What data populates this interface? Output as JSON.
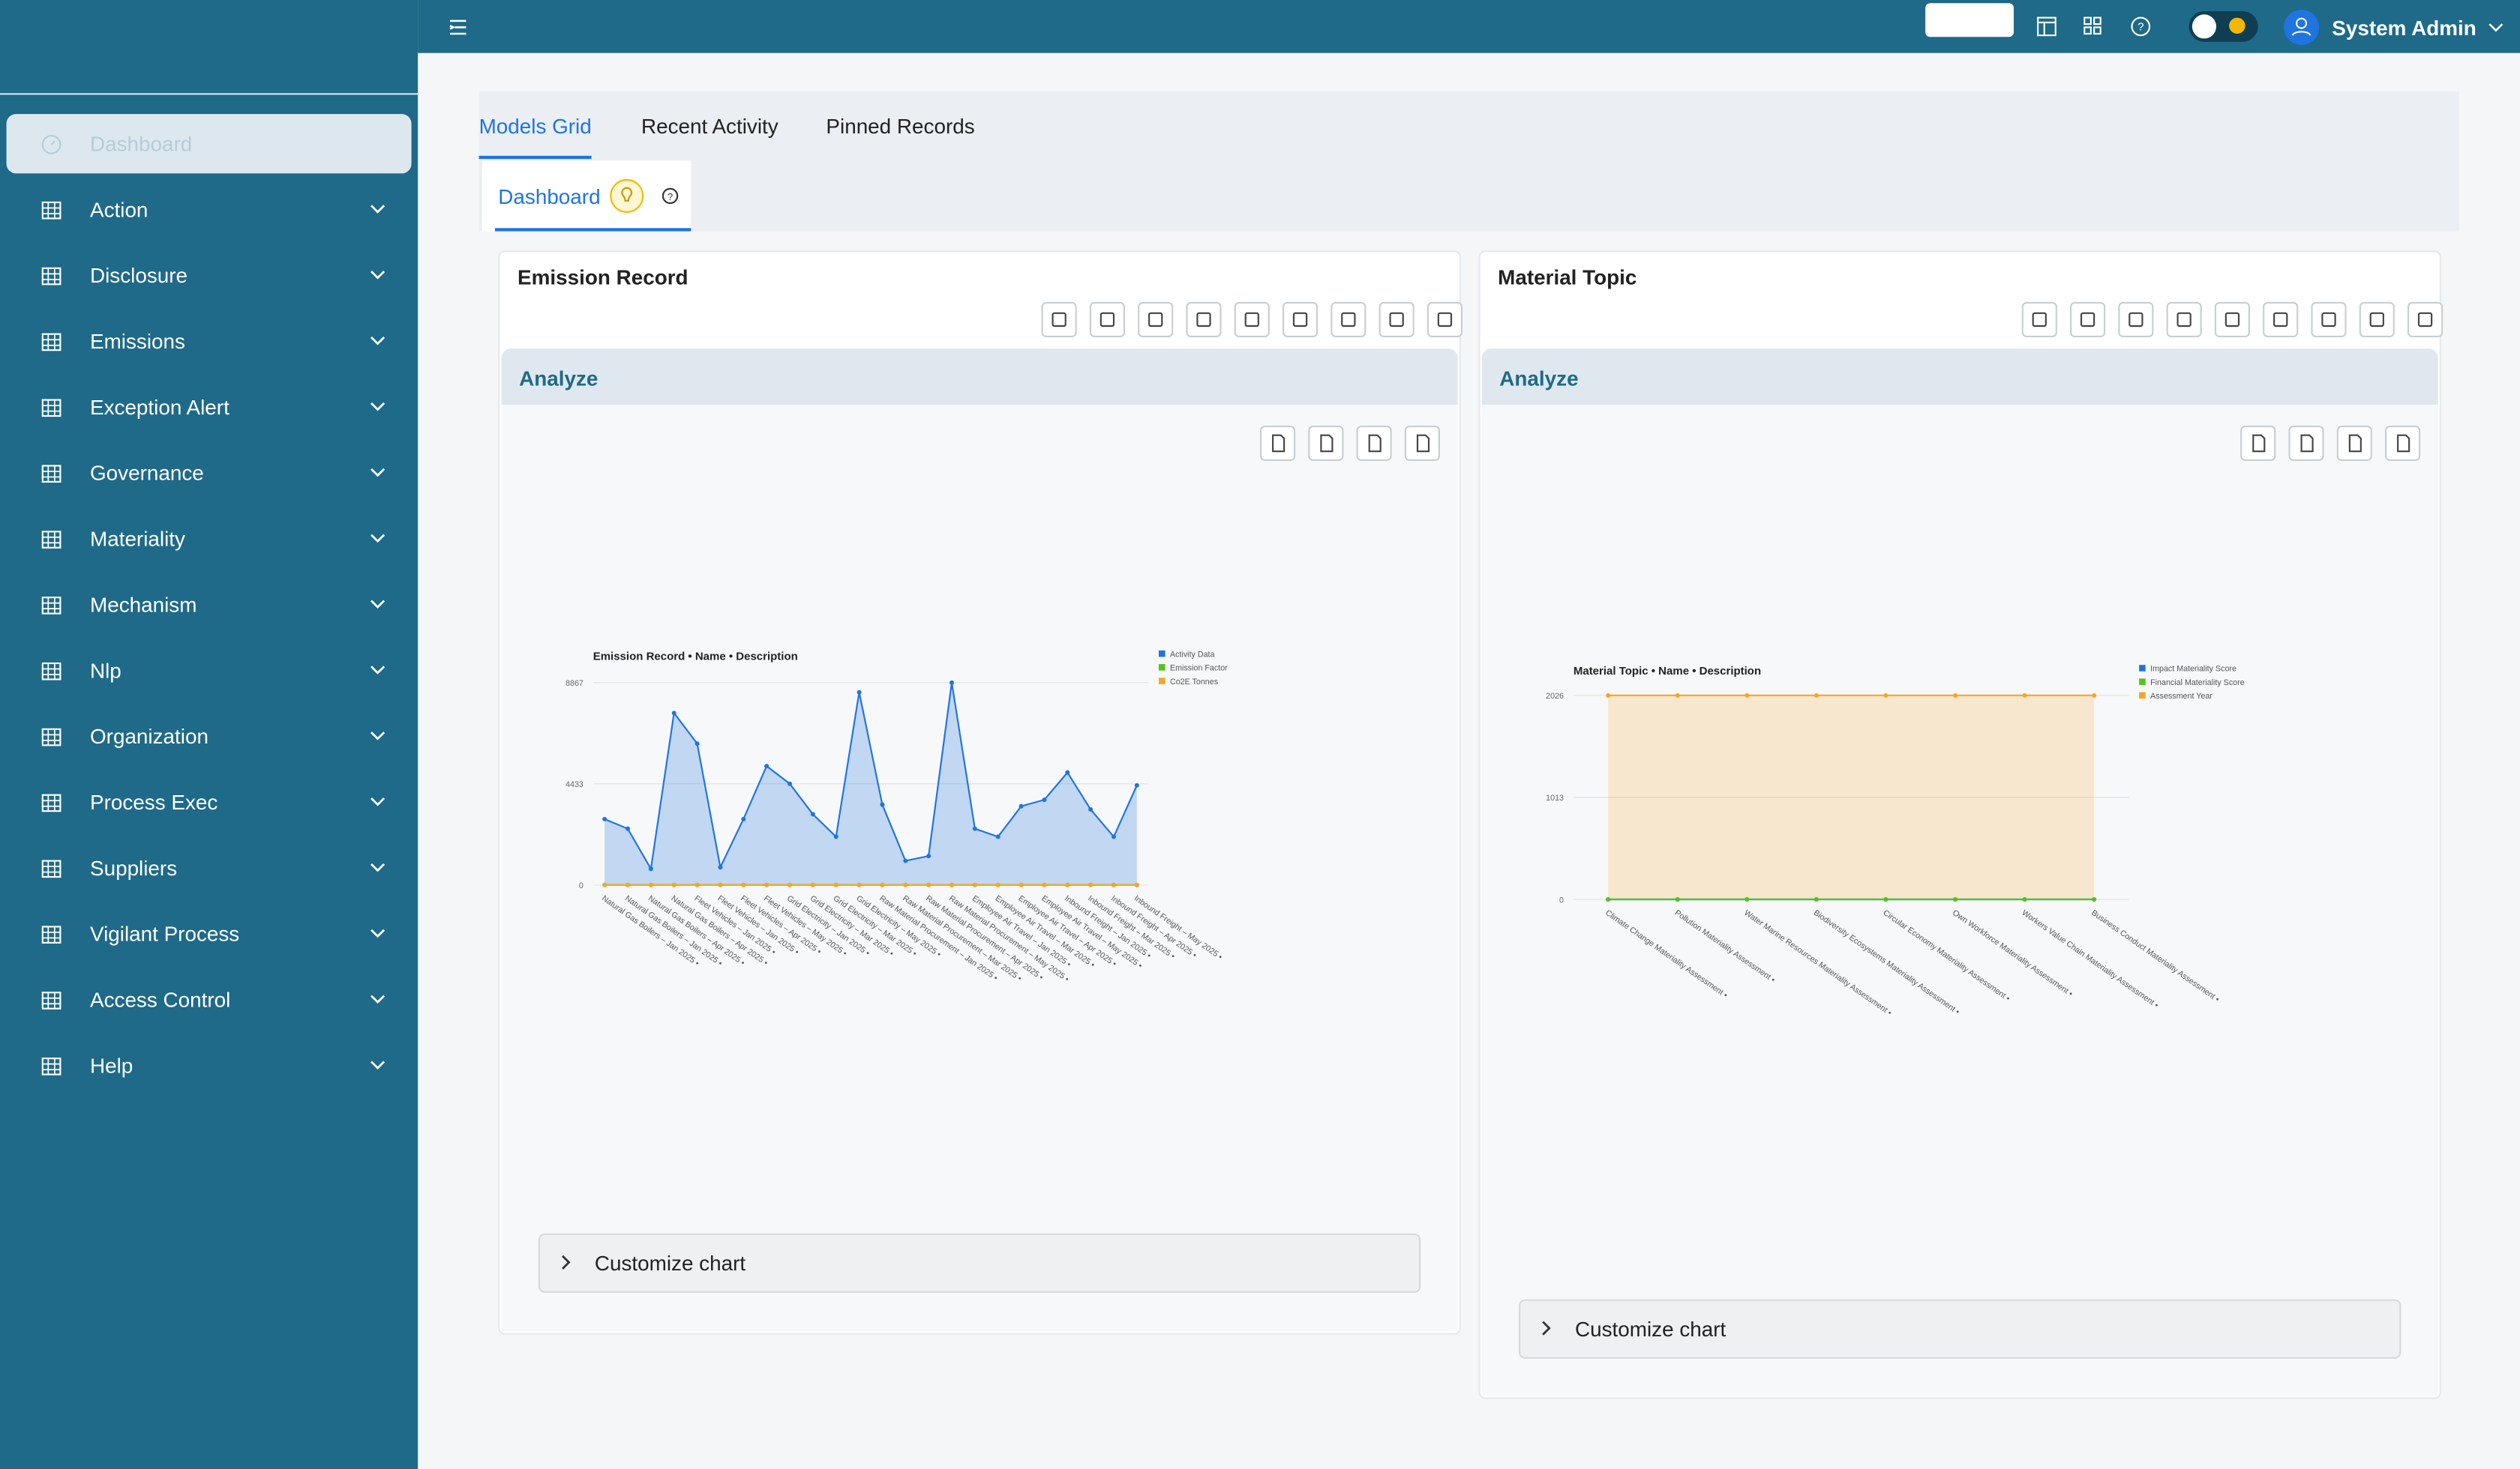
{
  "header": {
    "user": "System Admin"
  },
  "sidebar": {
    "items": [
      "Dashboard",
      "Action",
      "Disclosure",
      "Emissions",
      "Exception Alert",
      "Governance",
      "Materiality",
      "Mechanism",
      "Nlp",
      "Organization",
      "Process Exec",
      "Suppliers",
      "Vigilant Process",
      "Access Control",
      "Help"
    ]
  },
  "tabs": [
    "Models Grid",
    "Recent Activity",
    "Pinned Records"
  ],
  "subtab": "Dashboard",
  "panels": [
    {
      "title": "Emission Record",
      "section": "Analyze",
      "customize": "Customize chart"
    },
    {
      "title": "Material Topic",
      "section": "Analyze",
      "customize": "Customize chart"
    }
  ],
  "chart_data": [
    {
      "type": "line",
      "title": "Emission Record • Name • Description",
      "legend": "top-right",
      "categories": [
        "Natural Gas Boilers – Jan 2025 •",
        "Natural Gas Boilers – Jan 2025 •",
        "Natural Gas Boilers – Apr 2025 •",
        "Natural Gas Boilers – Apr 2025 •",
        "Fleet Vehicles – Jan 2025 •",
        "Fleet Vehicles – Jan 2025 •",
        "Fleet Vehicles – Apr 2025 •",
        "Fleet Vehicles – May 2025 •",
        "Grid Electricity – Jan 2025 •",
        "Grid Electricity – Mar 2025 •",
        "Grid Electricity – Mar 2025 •",
        "Grid Electricity – May 2025 •",
        "Raw Material Procurement – Jan 2025 •",
        "Raw Material Procurement – Mar 2025 •",
        "Raw Material Procurement – Apr 2025 •",
        "Raw Material Procurement – May 2025 •",
        "Employee Air Travel – Jan 2025 •",
        "Employee Air Travel – Mar 2025 •",
        "Employee Air Travel – Apr 2025 •",
        "Employee Air Travel – May 2025 •",
        "Inbound Freight – Jan 2025 •",
        "Inbound Freight – Mar 2025 •",
        "Inbound Freight – Apr 2025 •",
        "Inbound Freight – May 2025 •"
      ],
      "series": [
        {
          "name": "Activity Data",
          "color": "#1f74e0",
          "area": true,
          "values": [
            2886,
            2464,
            704,
            7533,
            6195,
            774,
            2886,
            5209,
            4434,
            3097,
            2112,
            8445,
            3520,
            1056,
            1267,
            8867,
            2464,
            2112,
            3449,
            3731,
            4928,
            3308,
            2112,
            4364
          ]
        },
        {
          "name": "Emission Factor",
          "color": "#52c41a",
          "values": [
            0,
            0,
            0,
            0,
            0,
            0,
            0,
            0,
            0,
            0,
            0,
            0,
            0,
            0,
            0,
            0,
            0,
            0,
            0,
            0,
            0,
            0,
            0,
            0
          ]
        },
        {
          "name": "Co2E Tonnes",
          "color": "#f5a623",
          "values": [
            0,
            0,
            0,
            0,
            0,
            0,
            0,
            0,
            0,
            0,
            0,
            0,
            0,
            0,
            0,
            0,
            0,
            0,
            0,
            0,
            0,
            0,
            0,
            0
          ]
        }
      ],
      "ylim": [
        0,
        8867
      ],
      "yticks": [
        0,
        4433,
        8867
      ],
      "grid": true
    },
    {
      "type": "line",
      "title": "Material Topic • Name • Description",
      "legend": "top-right",
      "categories": [
        "Climate Change Materiality Assessment •",
        "Pollution Materiality Assessment •",
        "Water Marine Resources Materiality Assessment •",
        "Biodiversity Ecosystems Materiality Assessment •",
        "Circular Economy Materiality Assessment •",
        "Own Workforce Materiality Assessment •",
        "Workers Value Chain Materiality Assessment •",
        "Business Conduct Materiality Assessment •"
      ],
      "series": [
        {
          "name": "Impact Materiality Score",
          "color": "#1f74e0",
          "values": [
            0,
            0,
            0,
            0,
            0,
            0,
            0,
            0
          ]
        },
        {
          "name": "Financial Materiality Score",
          "color": "#52c41a",
          "values": [
            0,
            0,
            0,
            0,
            0,
            0,
            0,
            0
          ]
        },
        {
          "name": "Assessment Year",
          "color": "#f5a623",
          "area": true,
          "values": [
            2026,
            2026,
            2026,
            2026,
            2026,
            2026,
            2026,
            2026
          ]
        }
      ],
      "ylim": [
        0,
        2026
      ],
      "yticks": [
        0,
        1013,
        2026
      ],
      "grid": true
    }
  ]
}
